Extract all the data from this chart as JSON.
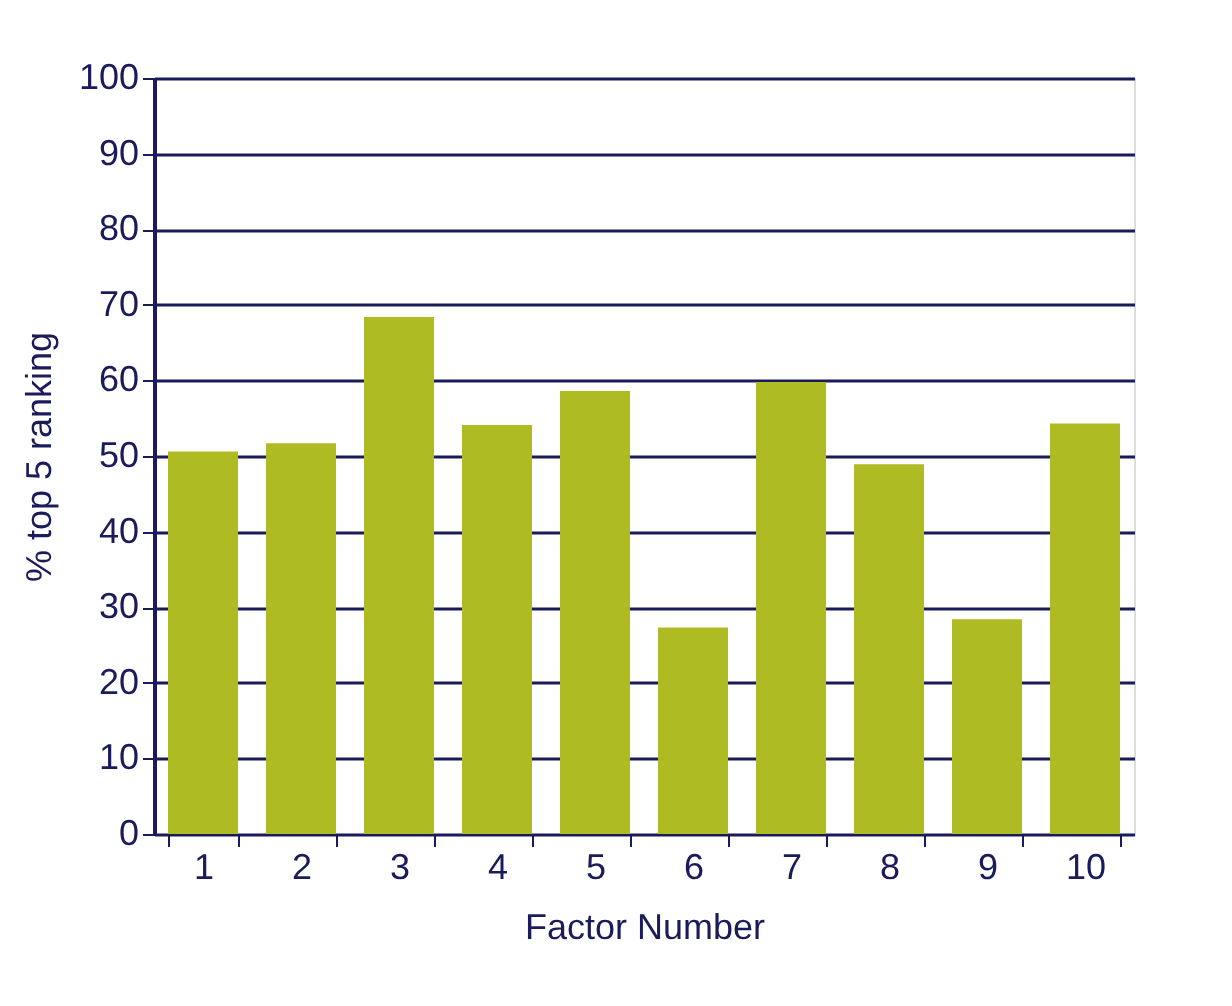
{
  "chart_data": {
    "type": "bar",
    "xlabel": "Factor Number",
    "ylabel": "% top 5 ranking",
    "categories": [
      "1",
      "2",
      "3",
      "4",
      "5",
      "6",
      "7",
      "8",
      "9",
      "10"
    ],
    "values": [
      50.6,
      51.7,
      68.4,
      54.1,
      58.6,
      27.3,
      59.8,
      48.9,
      28.4,
      54.3
    ],
    "color": "#afbb23",
    "ylim": [
      0,
      100
    ],
    "yticks": [
      0,
      10,
      20,
      30,
      40,
      50,
      60,
      70,
      80,
      90,
      100
    ],
    "grid": "y"
  }
}
